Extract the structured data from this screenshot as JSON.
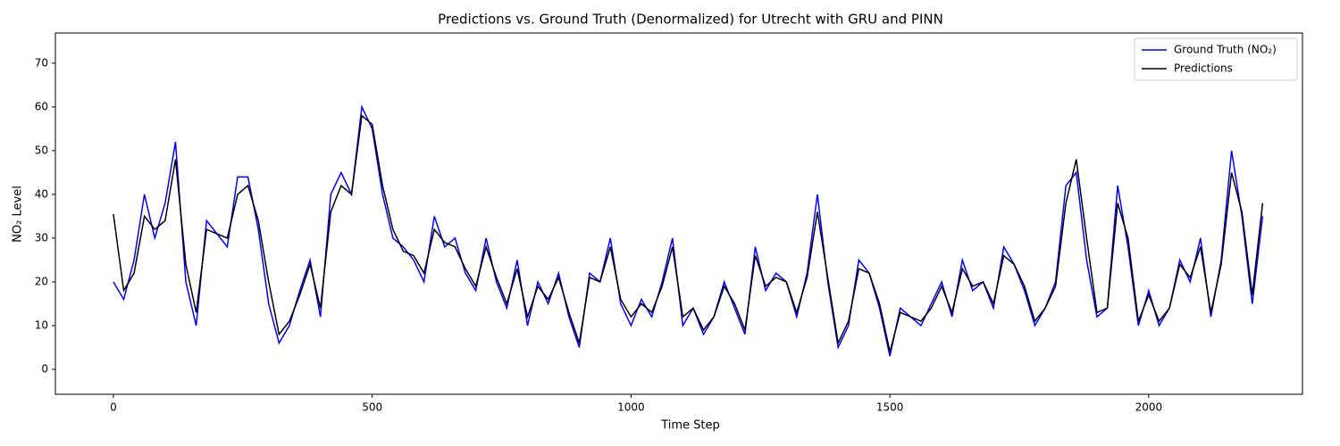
{
  "chart_data": {
    "type": "line",
    "title": "Predictions vs. Ground Truth (Denormalized) for Utrecht with GRU and PINN",
    "x_label": "Time Step",
    "y_label": "NO₂ Level",
    "x": [
      0,
      20,
      40,
      60,
      80,
      100,
      120,
      140,
      160,
      180,
      200,
      220,
      240,
      260,
      280,
      300,
      320,
      340,
      360,
      380,
      400,
      420,
      440,
      460,
      480,
      500,
      520,
      540,
      560,
      580,
      600,
      620,
      640,
      660,
      680,
      700,
      720,
      740,
      760,
      780,
      800,
      820,
      840,
      860,
      880,
      900,
      920,
      940,
      960,
      980,
      1000,
      1020,
      1040,
      1060,
      1080,
      1100,
      1120,
      1140,
      1160,
      1180,
      1200,
      1220,
      1240,
      1260,
      1280,
      1300,
      1320,
      1340,
      1360,
      1380,
      1400,
      1420,
      1440,
      1460,
      1480,
      1500,
      1520,
      1540,
      1560,
      1580,
      1600,
      1620,
      1640,
      1660,
      1680,
      1700,
      1720,
      1740,
      1760,
      1780,
      1800,
      1820,
      1840,
      1860,
      1880,
      1900,
      1920,
      1940,
      1960,
      1980,
      2000,
      2020,
      2040,
      2060,
      2080,
      2100,
      2120,
      2140,
      2160,
      2180,
      2200,
      2220
    ],
    "series": [
      {
        "name": "Ground Truth (NO₂)",
        "color": "#0000ff",
        "values": [
          20,
          16,
          25,
          40,
          30,
          38,
          52,
          20,
          10,
          34,
          31,
          28,
          44,
          44,
          32,
          15,
          6,
          10,
          18,
          25,
          12,
          40,
          45,
          40,
          60,
          55,
          40,
          30,
          28,
          25,
          20,
          35,
          28,
          30,
          22,
          18,
          30,
          20,
          14,
          25,
          10,
          20,
          15,
          22,
          12,
          5,
          22,
          20,
          30,
          15,
          10,
          16,
          12,
          20,
          30,
          10,
          14,
          8,
          12,
          20,
          14,
          8,
          28,
          18,
          22,
          20,
          12,
          22,
          40,
          20,
          5,
          10,
          25,
          22,
          14,
          3,
          14,
          12,
          10,
          15,
          20,
          12,
          25,
          18,
          20,
          14,
          28,
          24,
          18,
          10,
          14,
          20,
          42,
          45,
          25,
          12,
          14,
          42,
          28,
          10,
          18,
          10,
          14,
          25,
          20,
          30,
          12,
          25,
          50,
          35,
          15,
          35
        ]
      },
      {
        "name": "Predictions",
        "color": "#000000",
        "values": [
          35.5,
          18,
          22,
          35,
          32,
          34,
          48,
          24,
          13,
          32,
          31,
          30,
          40,
          42,
          34,
          20,
          8,
          11,
          17,
          24,
          14,
          36,
          42,
          40,
          58,
          56,
          42,
          32,
          27,
          26,
          22,
          32,
          29,
          28,
          23,
          19,
          28,
          21,
          15,
          23,
          12,
          19,
          16,
          21,
          13,
          6,
          21,
          20,
          28,
          16,
          12,
          15,
          13,
          19,
          28,
          12,
          14,
          9,
          12,
          19,
          15,
          9,
          26,
          19,
          21,
          20,
          13,
          21,
          36,
          21,
          6,
          11,
          23,
          22,
          15,
          4,
          13,
          12,
          11,
          14,
          19,
          13,
          23,
          19,
          20,
          15,
          26,
          24,
          19,
          11,
          14,
          19,
          38,
          48,
          30,
          13,
          14,
          38,
          30,
          11,
          17,
          11,
          14,
          24,
          21,
          28,
          13,
          24,
          45,
          36,
          17,
          38
        ]
      }
    ],
    "xlim": [
      -112,
      2297
    ],
    "ylim": [
      -5.7,
      76.9
    ],
    "xticks": [
      0,
      500,
      1000,
      1500,
      2000
    ],
    "yticks": [
      0,
      10,
      20,
      30,
      40,
      50,
      60,
      70
    ],
    "legend": "upper right"
  }
}
